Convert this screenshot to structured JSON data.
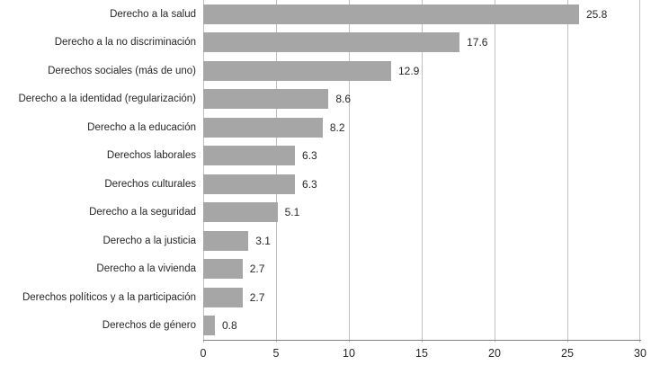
{
  "chart_data": {
    "type": "bar",
    "orientation": "horizontal",
    "title": "",
    "xlabel": "",
    "ylabel": "",
    "categories": [
      "Derecho a la salud",
      "Derecho a la no discriminación",
      "Derechos sociales (más de uno)",
      "Derecho a la identidad (regularización)",
      "Derecho a la educación",
      "Derechos laborales",
      "Derechos culturales",
      "Derecho a la seguridad",
      "Derecho a la justicia",
      "Derecho a la vivienda",
      "Derechos políticos y a la participación",
      "Derechos de género"
    ],
    "values": [
      25.8,
      17.6,
      12.9,
      8.6,
      8.2,
      6.3,
      6.3,
      5.1,
      3.1,
      2.7,
      2.7,
      0.8
    ],
    "value_labels": [
      "25.8",
      "17.6",
      "12.9",
      "8.6",
      "8.2",
      "6.3",
      "6.3",
      "5.1",
      "3.1",
      "2.7",
      "2.7",
      "0.8"
    ],
    "xlim": [
      0,
      30
    ],
    "xticks": [
      0,
      5,
      10,
      15,
      20,
      25,
      30
    ],
    "grid": "vertical gridlines at each x tick, drawn full height behind bars",
    "legend": "none",
    "data_labels_position": "outside end of each bar"
  },
  "colors": {
    "bar": "#a6a6a6",
    "gridline": "#c0c0c0",
    "axis": "#808080",
    "text": "#262626",
    "background": "#ffffff"
  }
}
